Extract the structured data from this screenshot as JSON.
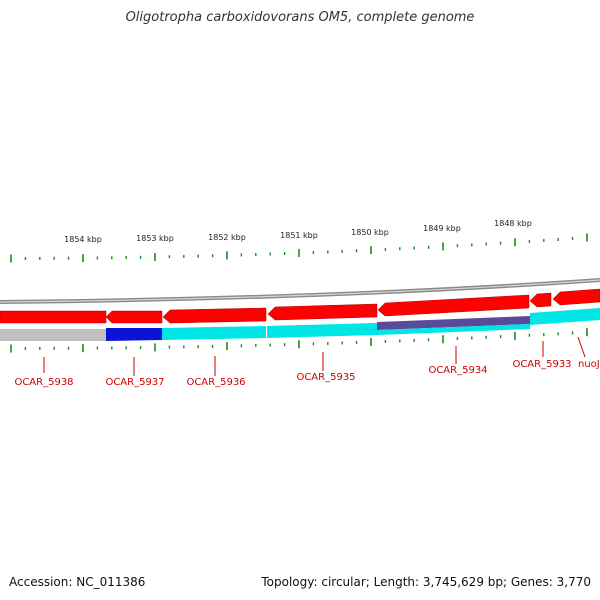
{
  "title": "Oligotropha carboxidovorans OM5, complete genome",
  "footer": {
    "accession": "Accession: NC_011386",
    "summary": "Topology: circular; Length: 3,745,629 bp; Genes: 3,770"
  },
  "scale_labels": [
    "1854 kbp",
    "1853 kbp",
    "1852 kbp",
    "1851 kbp",
    "1850 kbp",
    "1849 kbp",
    "1848 kbp"
  ],
  "gene_labels": [
    "OCAR_5938",
    "OCAR_5937",
    "OCAR_5936",
    "OCAR_5935",
    "OCAR_5934",
    "OCAR_5933",
    "nuoJ"
  ],
  "colors": {
    "backbone": "#8a8a8a",
    "forward_gene": "#ff0000",
    "label_red": "#cc0000",
    "tick_green": "#1a8a1a",
    "gray_feature": "#c0c0c0",
    "blue_feature": "#0a14d6",
    "cyan_feature": "#00e5e5",
    "purple_feature": "#5a4a9a"
  }
}
